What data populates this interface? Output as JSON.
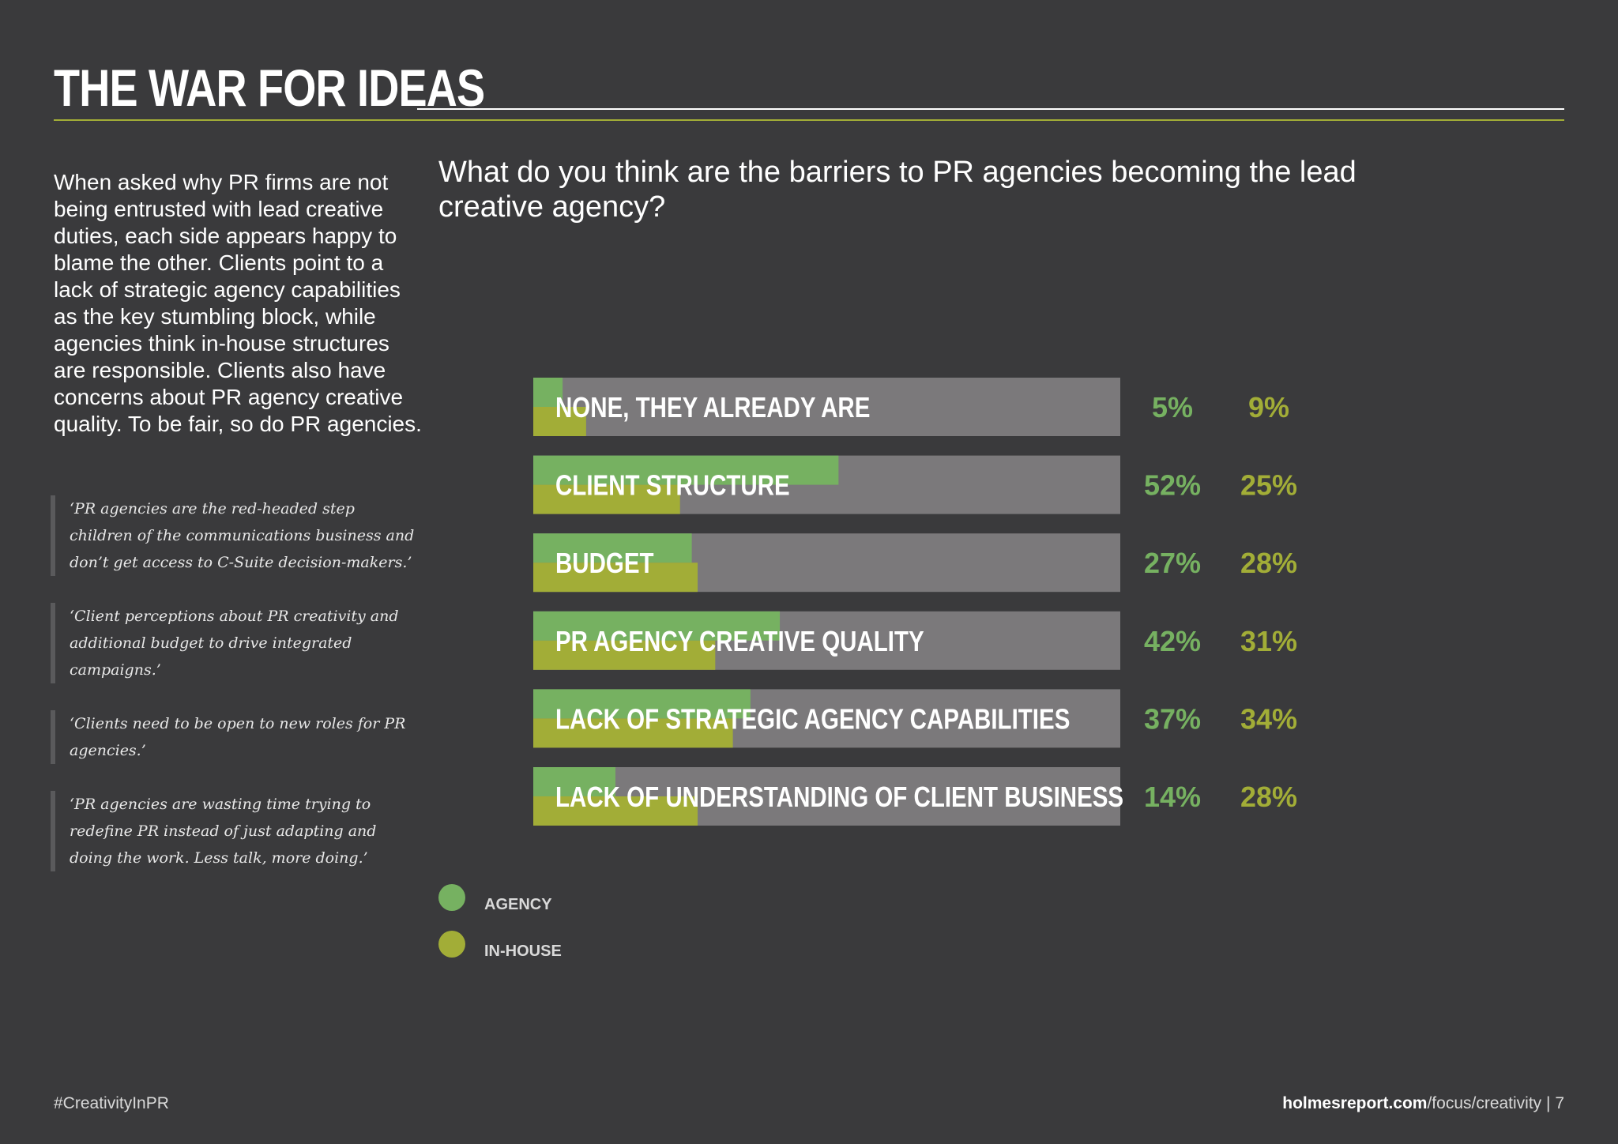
{
  "header": {
    "title": "THE WAR FOR IDEAS"
  },
  "intro": "When asked why PR firms are not being entrusted with lead creative duties, each side appears happy to blame the other. Clients point to a lack of strategic agency capabilities as the key stumbling block, while agencies think in-house structures are responsible. Clients also have concerns about PR agency creative quality. To be fair, so do PR agencies.",
  "quotes": [
    "‘PR agencies are the red-headed step children of the communications business and don’t get access to C-Suite decision-makers.’",
    "‘Client perceptions about PR creativity and additional budget to drive integrated campaigns.’",
    "‘Clients need to be open to new roles for PR agencies.’",
    "‘PR agencies are wasting time trying to redefine PR instead of just adapting and doing the work. Less talk, more doing.’"
  ],
  "chart_data": {
    "type": "bar",
    "title": "What do you think are the barriers to PR agencies becoming the lead creative agency?",
    "categories": [
      "NONE, THEY ALREADY ARE",
      "CLIENT STRUCTURE",
      "BUDGET",
      "PR AGENCY CREATIVE QUALITY",
      "LACK OF STRATEGIC AGENCY CAPABILITIES",
      "LACK OF UNDERSTANDING OF CLIENT BUSINESS"
    ],
    "series": [
      {
        "name": "AGENCY",
        "values": [
          5,
          52,
          27,
          42,
          37,
          14
        ],
        "labels": [
          "5%",
          "52%",
          "27%",
          "42%",
          "37%",
          "14%"
        ],
        "color": "#76b161"
      },
      {
        "name": "IN-HOUSE",
        "values": [
          9,
          25,
          28,
          31,
          34,
          28
        ],
        "labels": [
          "9%",
          "25%",
          "28%",
          "31%",
          "34%",
          "28%"
        ],
        "color": "#a2ad37"
      }
    ],
    "xlim": [
      0,
      100
    ],
    "orientation": "horizontal",
    "legend_position": "bottom-left",
    "track_color": "#7b797b"
  },
  "footer": {
    "hashtag": "#CreativityInPR",
    "site_bold": "holmesreport.com",
    "site_path": "/focus/creativity",
    "separator": " | ",
    "page_number": "7"
  }
}
